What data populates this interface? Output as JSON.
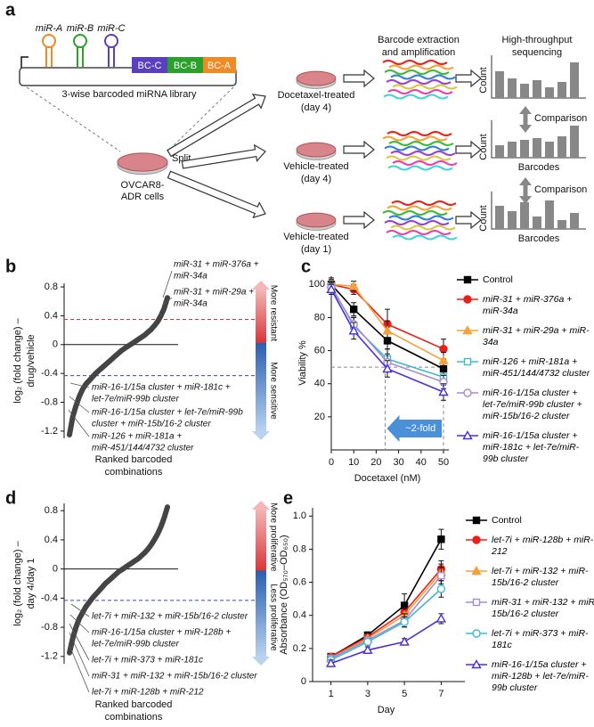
{
  "diagram": {
    "label": "a",
    "mirnas": [
      "miR-A",
      "miR-B",
      "miR-C"
    ],
    "barcodes": [
      "BC-C",
      "BC-B",
      "BC-A"
    ],
    "library": "3-wise barcoded miRNA library",
    "cells": [
      "OVCAR8-",
      "ADR cells"
    ],
    "split": "Split",
    "conditions": [
      [
        "Docetaxel-treated",
        "(day 4)"
      ],
      [
        "Vehicle-treated",
        "(day 4)"
      ],
      [
        "Vehicle-treated",
        "(day 1)"
      ]
    ],
    "extraction": [
      "Barcode extraction",
      "and amplification"
    ],
    "sequencing": [
      "High-throughput",
      "sequencing"
    ],
    "counts": [
      "Count",
      "Count",
      "Count"
    ],
    "comparisons": [
      "Comparison",
      "Comparison"
    ],
    "barcode_axes": [
      "Barcodes",
      "Barcodes"
    ]
  },
  "chart_data": [
    {
      "label": "b",
      "type": "ranked",
      "y_label": [
        "log₂ (fold change) –",
        "drug/vehicle"
      ],
      "x_label": [
        "Ranked barcoded",
        "combinations"
      ],
      "values": [
        -1.25,
        -1.0,
        -0.85,
        -0.72,
        -0.62,
        -0.55,
        -0.5,
        -0.45,
        -0.4,
        -0.36,
        -0.32,
        -0.28,
        -0.24,
        -0.2,
        -0.16,
        -0.12,
        -0.08,
        -0.05,
        -0.02,
        0.01,
        0.04,
        0.07,
        0.1,
        0.13,
        0.17,
        0.21,
        0.26,
        0.32,
        0.4,
        0.5,
        0.65
      ],
      "color": "#444444",
      "ylim": [
        -1.3,
        0.85
      ],
      "yticks": [
        0.8,
        0.4,
        0,
        -0.4,
        -0.8,
        -1.2
      ],
      "reference_lines": [
        {
          "value": 0.35,
          "color": "#e0302a"
        },
        {
          "value": -0.43,
          "color": "#3a3ae0"
        }
      ],
      "scale_bar": [
        "More resistant",
        "More sensitive"
      ],
      "annotations": [
        "miR-31 + miR-376a +",
        "miR-34a",
        "miR-31 + miR-29a +",
        "miR-34a",
        "miR-16-1/15a cluster + miR-181c +",
        "let-7e/miR-99b cluster",
        "miR-16-1/15a cluster + let-7e/miR-99b",
        "cluster + miR-15b/16-2 cluster",
        "miR-126 + miR-181a +",
        "miR-451/144/4732 cluster"
      ]
    },
    {
      "label": "c",
      "type": "line",
      "x_label": "Docetaxel (nM)",
      "y_label": "Viability %",
      "x": [
        0,
        10,
        25,
        50
      ],
      "xlim": [
        0,
        50
      ],
      "xticks": [
        0,
        10,
        20,
        30,
        40,
        50
      ],
      "ylim": [
        0,
        105
      ],
      "yticks": [
        20,
        40,
        60,
        80,
        100
      ],
      "reference_y": 50,
      "reference_x": [
        24,
        50
      ],
      "fold_label": "~2-fold",
      "series": [
        {
          "name": "Control",
          "color": "#000000",
          "marker": "square",
          "filled": true,
          "values": [
            100,
            85,
            66,
            49
          ],
          "errors": [
            4,
            4,
            5,
            5
          ]
        },
        {
          "name": "miR-31 + miR-376a + miR-34a",
          "color": "#e8221b",
          "marker": "circle",
          "filled": true,
          "values": [
            100,
            97,
            76,
            61
          ],
          "errors": [
            3,
            3,
            9,
            6
          ]
        },
        {
          "name": "miR-31 + miR-29a + miR-34a",
          "color": "#f4a13a",
          "marker": "triangle",
          "filled": true,
          "values": [
            100,
            99,
            72,
            54
          ],
          "errors": [
            3,
            3,
            6,
            5
          ]
        },
        {
          "name": "miR-126 + miR-181a + miR-451/144/4732 cluster",
          "color": "#3fb9d3",
          "marker": "square",
          "filled": false,
          "values": [
            99,
            75,
            55,
            44
          ],
          "errors": [
            3,
            5,
            6,
            5
          ]
        },
        {
          "name": "miR-16-1/15a cluster + let-7e/miR-99b cluster + miR-15b/16-2 cluster",
          "color": "#a58bd0",
          "marker": "circle",
          "filled": false,
          "values": [
            98,
            76,
            53,
            41
          ],
          "errors": [
            3,
            4,
            5,
            4
          ]
        },
        {
          "name": "miR-16-1/15a cluster + miR-181c + let-7e/miR-99b cluster",
          "color": "#4b2fd6",
          "marker": "triangle",
          "filled": false,
          "values": [
            97,
            72,
            49,
            35
          ],
          "errors": [
            3,
            5,
            5,
            5
          ]
        }
      ]
    },
    {
      "label": "d",
      "type": "ranked",
      "y_label": [
        "log₂ (fold change) –",
        "day 4/day 1"
      ],
      "x_label": [
        "Ranked barcoded",
        "combinations"
      ],
      "values": [
        -1.15,
        -0.95,
        -0.8,
        -0.68,
        -0.6,
        -0.52,
        -0.46,
        -0.4,
        -0.35,
        -0.3,
        -0.25,
        -0.2,
        -0.16,
        -0.12,
        -0.08,
        -0.04,
        -0.01,
        0.02,
        0.05,
        0.08,
        0.11,
        0.14,
        0.18,
        0.22,
        0.27,
        0.33,
        0.4,
        0.48,
        0.58,
        0.7,
        0.85
      ],
      "color": "#444444",
      "ylim": [
        -1.3,
        0.9
      ],
      "yticks": [
        0.8,
        0.4,
        0,
        -0.4,
        -0.8,
        -1.2
      ],
      "reference_lines": [
        {
          "value": -0.43,
          "color": "#3a3ae0"
        }
      ],
      "scale_bar": [
        "More proliferative",
        "Less proliferative"
      ],
      "annotations": [
        "let-7i + miR-132 + miR-15b/16-2 cluster",
        "miR-16-1/15a cluster + miR-128b +",
        "let-7e/miR-99b cluster",
        "let-7i + miR-373 + miR-181c",
        "miR-31 + miR-132 + miR-15b/16-2 cluster",
        "let-7i + miR-128b + miR-212"
      ]
    },
    {
      "label": "e",
      "type": "line",
      "x_label": "Day",
      "y_label": "Absorbance (OD₅₇₀–OD₆₅₀)",
      "x": [
        1,
        3,
        5,
        7
      ],
      "xlim": [
        0,
        8
      ],
      "xticks": [
        1,
        3,
        5,
        7
      ],
      "ylim": [
        0,
        1.05
      ],
      "yticks": [
        0,
        0.2,
        0.4,
        0.6,
        0.8,
        {
          "value": 1,
          "label": "1.0"
        }
      ],
      "series": [
        {
          "name": "Control",
          "color": "#000000",
          "marker": "square",
          "filled": true,
          "values": [
            0.15,
            0.28,
            0.46,
            0.86
          ],
          "errors": [
            0.02,
            0.02,
            0.07,
            0.06
          ]
        },
        {
          "name": "let-7i + miR-128b + miR-212",
          "color": "#e8221b",
          "marker": "circle",
          "filled": true,
          "values": [
            0.15,
            0.27,
            0.42,
            0.68
          ],
          "errors": [
            0.02,
            0.02,
            0.05,
            0.05
          ]
        },
        {
          "name": "let-7i + miR-132 + miR-15b/16-2 cluster",
          "color": "#f4a13a",
          "marker": "triangle",
          "filled": true,
          "values": [
            0.14,
            0.26,
            0.4,
            0.66
          ],
          "errors": [
            0.02,
            0.03,
            0.04,
            0.05
          ]
        },
        {
          "name": "miR-31 + miR-132 + miR-15b/16-2 cluster",
          "color": "#a58bd0",
          "marker": "square",
          "filled": false,
          "values": [
            0.14,
            0.25,
            0.37,
            0.64
          ],
          "errors": [
            0.02,
            0.02,
            0.04,
            0.05
          ]
        },
        {
          "name": "let-7i + miR-373 + miR-181c",
          "color": "#3fb9d3",
          "marker": "circle",
          "filled": false,
          "values": [
            0.13,
            0.24,
            0.36,
            0.56
          ],
          "errors": [
            0.02,
            0.02,
            0.03,
            0.05
          ]
        },
        {
          "name": "miR-16-1/15a cluster + miR-128b + let-7e/miR-99b cluster",
          "color": "#4b2fd6",
          "marker": "triangle",
          "filled": false,
          "values": [
            0.11,
            0.19,
            0.24,
            0.38
          ],
          "errors": [
            0.02,
            0.02,
            0.02,
            0.03
          ]
        }
      ]
    }
  ]
}
